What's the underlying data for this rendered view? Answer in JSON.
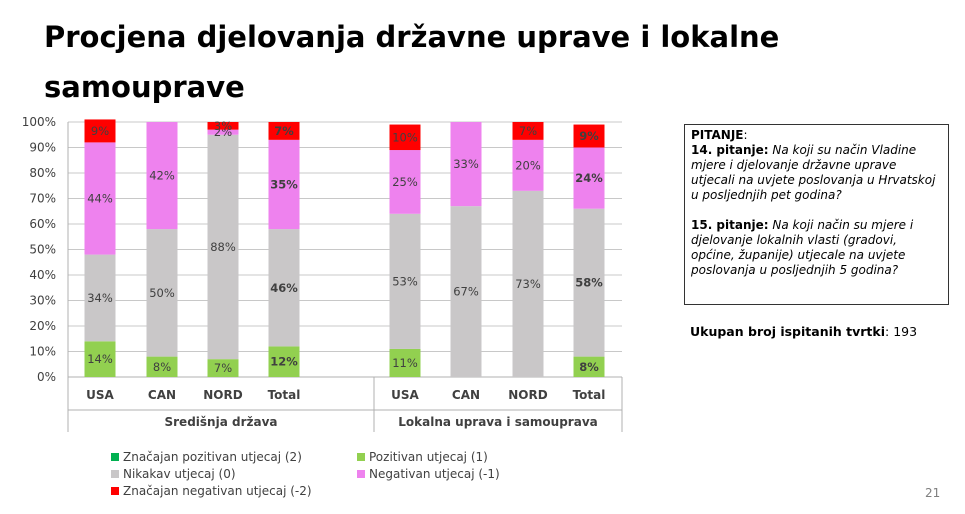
{
  "title": "Procjena djelovanja državne uprave i lokalne samouprave",
  "question_box": {
    "heading": "PITANJE",
    "heading_suffix": ":",
    "q14_label": "14. pitanje:",
    "q14_text": "Na koji su način Vladine mjere i djelovanje državne uprave utjecali na uvjete poslovanja u Hrvatskoj u posljednjih pet godina?",
    "q15_label": "15. pitanje:",
    "q15_text": "Na koji način su mjere i djelovanje lokalnih vlasti (gradovi, općine, županije) utjecale na uvjete poslovanja u posljednjih 5 godina?"
  },
  "total_respondents": {
    "label": "Ukupan broj ispitanih tvrtki",
    "sep": ":",
    "value": "193"
  },
  "page_number": "21",
  "chart_data": {
    "type": "bar",
    "stacked": true,
    "ylim": [
      0,
      100
    ],
    "yticks": [
      "0%",
      "10%",
      "20%",
      "30%",
      "40%",
      "50%",
      "60%",
      "70%",
      "80%",
      "90%",
      "100%"
    ],
    "grid": true,
    "legend_position": "bottom",
    "groups": [
      {
        "name": "Središnja država",
        "categories": [
          "USA",
          "CAN",
          "NORD",
          "Total"
        ]
      },
      {
        "name": "Lokalna uprava i samouprava",
        "categories": [
          "USA",
          "CAN",
          "NORD",
          "Total"
        ]
      }
    ],
    "bold_categories": [
      "Total"
    ],
    "series": [
      {
        "name": "Značajan pozitivan utjecaj (2)",
        "color": "#00B050",
        "values": [
          0,
          0,
          0,
          0,
          0,
          0,
          0,
          0
        ],
        "labels": [
          "",
          "",
          "",
          "",
          "",
          "",
          "",
          ""
        ]
      },
      {
        "name": "Pozitivan utjecaj (1)",
        "color": "#92D050",
        "values": [
          14,
          8,
          7,
          12,
          11,
          0,
          0,
          8
        ],
        "labels": [
          "14%",
          "8%",
          "7%",
          "12%",
          "11%",
          "",
          "",
          "8%"
        ]
      },
      {
        "name": "Nikakav utjecaj (0)",
        "color": "#C9C7C8",
        "values": [
          34,
          50,
          88,
          46,
          53,
          67,
          73,
          58
        ],
        "labels": [
          "34%",
          "50%",
          "88%",
          "46%",
          "53%",
          "67%",
          "73%",
          "58%"
        ]
      },
      {
        "name": "Negativan utjecaj (-1)",
        "color": "#EE82EE",
        "values": [
          44,
          42,
          2,
          35,
          25,
          33,
          20,
          24
        ],
        "labels": [
          "44%",
          "42%",
          "2%",
          "35%",
          "25%",
          "33%",
          "20%",
          "24%"
        ]
      },
      {
        "name": "Značajan negativan utjecaj (-2)",
        "color": "#FF0000",
        "values": [
          9,
          0,
          3,
          7,
          10,
          0,
          7,
          9
        ],
        "labels": [
          "9%",
          "",
          "3%",
          "7%",
          "10%",
          "",
          "7%",
          "9%"
        ]
      }
    ]
  }
}
